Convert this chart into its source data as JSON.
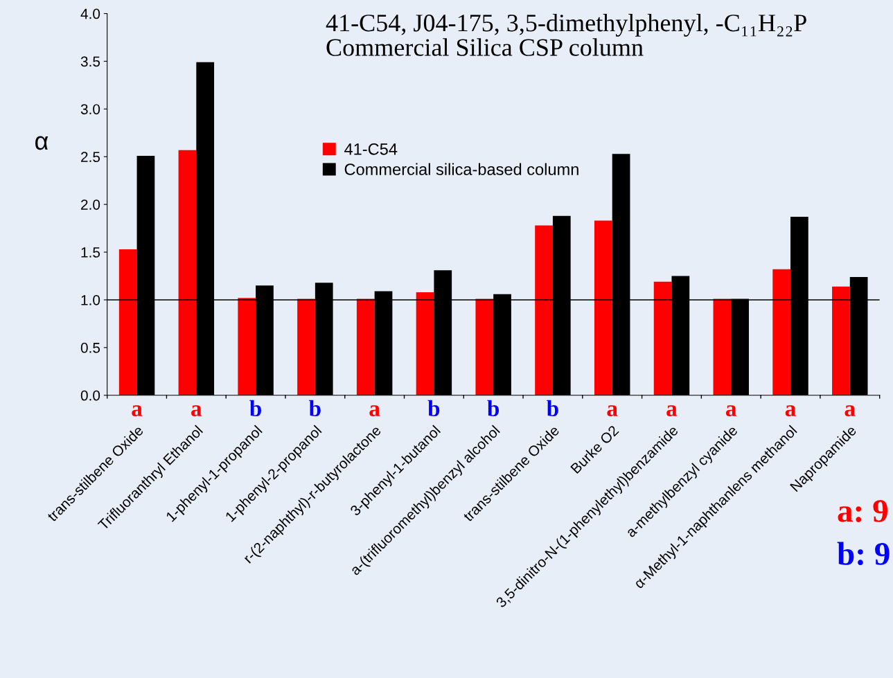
{
  "chart_data": {
    "type": "bar",
    "title": "41-C54, J04-175, 3,5-dimethylphenyl, -C₁₁H₂₂P\nCommercial Silica CSP column",
    "ylabel": "α",
    "categories": [
      "trans-stilbene Oxide",
      "Trifluoranthryl Ethanol",
      "1-phenyl-1-propanol",
      "1-phenyl-2-propanol",
      "r-(2-naphthyl)-r-butyrolactone",
      "3-phenyl-1-butanol",
      "a-(trifluoromethyl)benzyl alcohol",
      "trans-stilbene Oxide",
      "Burke O2",
      "3,5-dinitro-N-(1-phenylethyl)benzamide",
      "a-methylbenzyl cyanide",
      "α-Methyl-1-naphthanlens methanol",
      "Napropamide"
    ],
    "series": [
      {
        "name": "41-C54",
        "color": "#ff0000",
        "values": [
          1.53,
          2.57,
          1.02,
          1.01,
          1.01,
          1.08,
          1.01,
          1.78,
          1.83,
          1.19,
          1.01,
          1.32,
          1.14
        ]
      },
      {
        "name": "Commercial silica-based column",
        "color": "#000000",
        "values": [
          2.51,
          3.49,
          1.15,
          1.18,
          1.09,
          1.31,
          1.06,
          1.88,
          2.53,
          1.25,
          1.01,
          1.87,
          1.24
        ]
      }
    ],
    "ylim": [
      0,
      4.0
    ],
    "yticks": [
      {
        "value": 0,
        "label": "0.0"
      },
      {
        "value": 0.5,
        "label": "0.5"
      },
      {
        "value": 1.0,
        "label": "1.0"
      },
      {
        "value": 1.5,
        "label": "1.5"
      },
      {
        "value": 2.0,
        "label": "2.0"
      },
      {
        "value": 2.5,
        "label": "2.5"
      },
      {
        "value": 3.0,
        "label": "3.0"
      },
      {
        "value": 3.5,
        "label": "3.5"
      },
      {
        "value": 4.0,
        "label": "4.0"
      }
    ],
    "ref_lines": [
      {
        "axis": "y",
        "value": 1.0,
        "color": "#000000"
      }
    ],
    "annotations": [
      "a",
      "a",
      "b",
      "b",
      "a",
      "b",
      "b",
      "b",
      "a",
      "a",
      "a",
      "a",
      "a",
      "a: 9",
      "b: 9"
    ],
    "grid": false,
    "legend": "top"
  }
}
